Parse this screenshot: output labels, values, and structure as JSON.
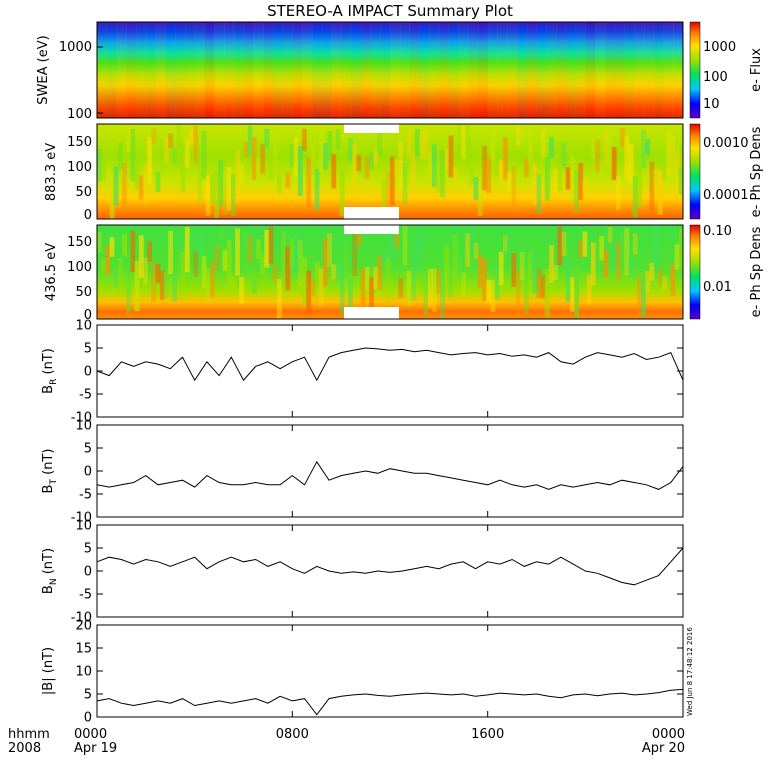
{
  "chart_data": {
    "title": "STEREO-A IMPACT Summary Plot",
    "bottom_axis": {
      "prefix_lines": [
        "hhmm",
        "2008"
      ],
      "ticks": [
        {
          "x": 0,
          "line1": "0000",
          "line2": "Apr 19"
        },
        {
          "x": 8,
          "line1": "0800",
          "line2": ""
        },
        {
          "x": 16,
          "line1": "1600",
          "line2": ""
        },
        {
          "x": 24,
          "line1": "0000",
          "line2": "Apr 20"
        }
      ],
      "xlim": [
        0,
        24
      ]
    },
    "side_note": "Wed Jun 8 17:48:12 2016",
    "spectrograms": [
      {
        "type": "heatmap",
        "ylabel": "SWEA (eV)",
        "yscale": "log",
        "ylim": [
          95,
          2000
        ],
        "yticks": [
          "1000",
          "100"
        ],
        "colorbar_label": "e- Flux",
        "colorbar_ticks": [
          "1000",
          "100",
          "10"
        ],
        "colormap": "rainbow"
      },
      {
        "type": "heatmap",
        "ylabel": "883.3 eV",
        "yscale": "linear",
        "ylim": [
          -5,
          180
        ],
        "yticks": [
          "150",
          "100",
          "50",
          "0"
        ],
        "colorbar_label": "e- Ph Sp Dens",
        "colorbar_ticks": [
          "0.0010",
          "0.0001"
        ],
        "colormap": "rainbow"
      },
      {
        "type": "heatmap",
        "ylabel": "436.5 eV",
        "yscale": "linear",
        "ylim": [
          -5,
          180
        ],
        "yticks": [
          "150",
          "100",
          "50",
          "0"
        ],
        "colorbar_label": "e- Ph Sp Dens",
        "colorbar_ticks": [
          "0.10",
          "0.01"
        ],
        "colormap": "rainbow"
      }
    ],
    "line_panels": [
      {
        "type": "line",
        "ylabel_main": "B",
        "ylabel_sub": "R",
        "ylabel_unit": " (nT)",
        "ylim": [
          -10,
          10
        ],
        "yticks": [
          "10",
          "5",
          "0",
          "-5",
          "-10"
        ],
        "x": [
          0,
          0.5,
          1,
          1.5,
          2,
          2.5,
          3,
          3.5,
          4,
          4.5,
          5,
          5.5,
          6,
          6.5,
          7,
          7.5,
          8,
          8.5,
          9,
          9.5,
          10,
          10.5,
          11,
          11.5,
          12,
          12.5,
          13,
          13.5,
          14,
          14.5,
          15,
          15.5,
          16,
          16.5,
          17,
          17.5,
          18,
          18.5,
          19,
          19.5,
          20,
          20.5,
          21,
          21.5,
          22,
          22.5,
          23,
          23.5,
          24
        ],
        "y": [
          0,
          -1,
          2,
          1,
          2,
          1.5,
          0.5,
          3,
          -2,
          2,
          -1,
          3,
          -2,
          1,
          2,
          0.5,
          2,
          3,
          -2,
          3,
          4,
          4.5,
          5,
          4.8,
          4.5,
          4.7,
          4.2,
          4.5,
          4,
          3.5,
          3.8,
          4,
          3.5,
          3.8,
          3.2,
          3.5,
          3,
          4,
          2,
          1.5,
          3,
          4,
          3.5,
          3,
          3.8,
          2.5,
          3,
          4,
          -2
        ]
      },
      {
        "type": "line",
        "ylabel_main": "B",
        "ylabel_sub": "T",
        "ylabel_unit": " (nT)",
        "ylim": [
          -10,
          10
        ],
        "yticks": [
          "10",
          "5",
          "0",
          "-5",
          "-10"
        ],
        "x": [
          0,
          0.5,
          1,
          1.5,
          2,
          2.5,
          3,
          3.5,
          4,
          4.5,
          5,
          5.5,
          6,
          6.5,
          7,
          7.5,
          8,
          8.5,
          9,
          9.5,
          10,
          10.5,
          11,
          11.5,
          12,
          12.5,
          13,
          13.5,
          14,
          14.5,
          15,
          15.5,
          16,
          16.5,
          17,
          17.5,
          18,
          18.5,
          19,
          19.5,
          20,
          20.5,
          21,
          21.5,
          22,
          22.5,
          23,
          23.5,
          24
        ],
        "y": [
          -3,
          -3.5,
          -3,
          -2.5,
          -1,
          -3,
          -2.5,
          -2,
          -3.5,
          -1,
          -2.5,
          -3,
          -3,
          -2.5,
          -3,
          -3,
          -1,
          -3,
          2,
          -2,
          -1,
          -0.5,
          0,
          -0.5,
          0.5,
          0,
          -0.5,
          -0.5,
          -1,
          -1.5,
          -2,
          -2.5,
          -3,
          -2,
          -3,
          -3.5,
          -3,
          -4,
          -3,
          -3.5,
          -3,
          -2.5,
          -3,
          -2,
          -2.5,
          -3,
          -4,
          -2.5,
          1
        ]
      },
      {
        "type": "line",
        "ylabel_main": "B",
        "ylabel_sub": "N",
        "ylabel_unit": " (nT)",
        "ylim": [
          -10,
          10
        ],
        "yticks": [
          "10",
          "5",
          "0",
          "-5",
          "-10"
        ],
        "x": [
          0,
          0.5,
          1,
          1.5,
          2,
          2.5,
          3,
          3.5,
          4,
          4.5,
          5,
          5.5,
          6,
          6.5,
          7,
          7.5,
          8,
          8.5,
          9,
          9.5,
          10,
          10.5,
          11,
          11.5,
          12,
          12.5,
          13,
          13.5,
          14,
          14.5,
          15,
          15.5,
          16,
          16.5,
          17,
          17.5,
          18,
          18.5,
          19,
          19.5,
          20,
          20.5,
          21,
          21.5,
          22,
          22.5,
          23,
          23.5,
          24
        ],
        "y": [
          2,
          3,
          2.5,
          1.5,
          2.5,
          2,
          1,
          2,
          3,
          0.5,
          2,
          3,
          2,
          2.5,
          1,
          2,
          0.5,
          -0.5,
          1,
          0,
          -0.5,
          -0.2,
          -0.5,
          0,
          -0.3,
          0,
          0.5,
          1,
          0.5,
          1.5,
          2,
          0.5,
          2,
          1.5,
          2.5,
          1,
          2,
          1.5,
          3,
          1.5,
          0,
          -0.5,
          -1.5,
          -2.5,
          -3,
          -2,
          -1,
          2,
          5
        ]
      },
      {
        "type": "line",
        "ylabel_main": "|B|",
        "ylabel_sub": "",
        "ylabel_unit": " (nT)",
        "ylim": [
          0,
          20
        ],
        "yticks": [
          "20",
          "15",
          "10",
          "5",
          "0"
        ],
        "x": [
          0,
          0.5,
          1,
          1.5,
          2,
          2.5,
          3,
          3.5,
          4,
          4.5,
          5,
          5.5,
          6,
          6.5,
          7,
          7.5,
          8,
          8.5,
          9,
          9.5,
          10,
          10.5,
          11,
          11.5,
          12,
          12.5,
          13,
          13.5,
          14,
          14.5,
          15,
          15.5,
          16,
          16.5,
          17,
          17.5,
          18,
          18.5,
          19,
          19.5,
          20,
          20.5,
          21,
          21.5,
          22,
          22.5,
          23,
          23.5,
          24
        ],
        "y": [
          3.5,
          4,
          3,
          2.5,
          3,
          3.5,
          3,
          4,
          2.5,
          3,
          3.5,
          3,
          3.5,
          4,
          3,
          4.5,
          3.5,
          4,
          0.5,
          4,
          4.5,
          4.8,
          5,
          4.7,
          4.5,
          4.8,
          5,
          5.2,
          5,
          4.8,
          5,
          4.5,
          4.8,
          5.2,
          5,
          4.8,
          5,
          4.5,
          4.2,
          4.8,
          5,
          4.6,
          5,
          5.2,
          4.8,
          5,
          5.3,
          5.8,
          6
        ]
      }
    ]
  }
}
